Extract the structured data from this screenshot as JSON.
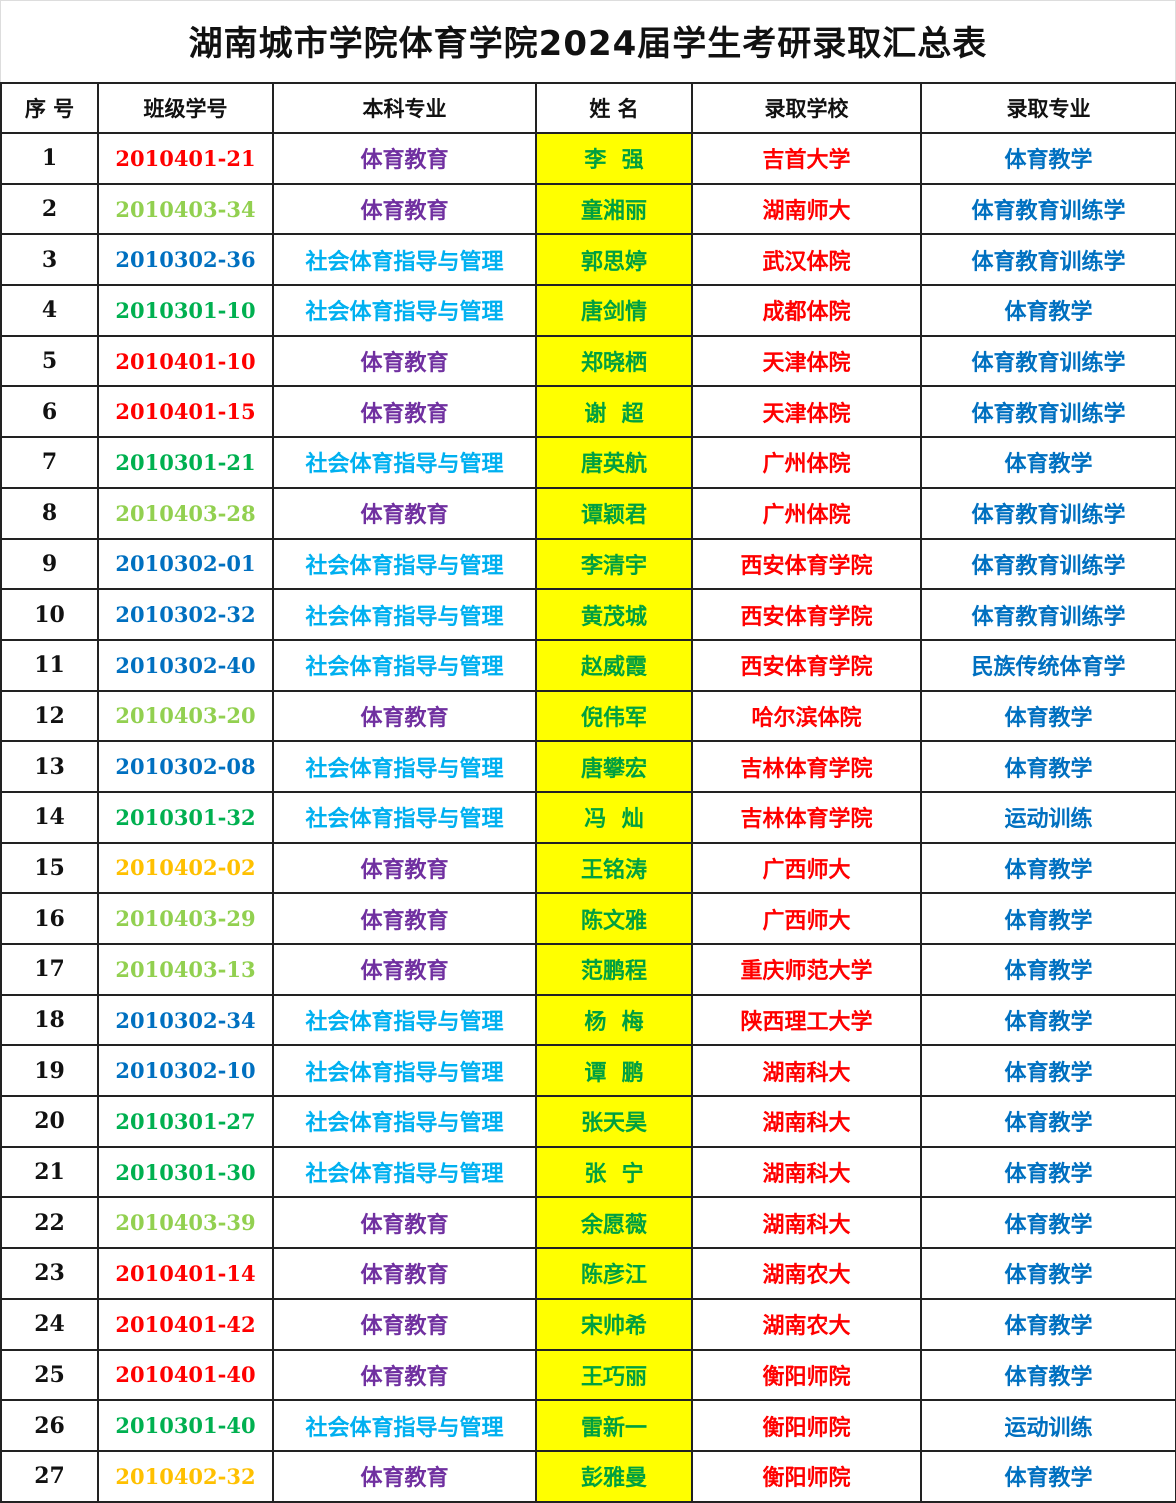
{
  "title": "湖南城市学院体育学院2024届学生考研录取汇总表",
  "headers": [
    "序  号",
    "班级学号",
    "本科专业",
    "姓  名",
    "录取学校",
    "录取专业"
  ],
  "colors": {
    "major_体育教育": "#7030a0",
    "major_社会体育指导与管理": "#00b0f0",
    "name": "#00a040",
    "school": "#ff0000",
    "admit_major": "#0070c0",
    "name_bg": "#ffff00"
  },
  "rows": [
    {
      "seq": "1",
      "sid": "2010401-21",
      "sid_color": "#ff0000",
      "major": "体育教育",
      "name": "李  强",
      "school": "吉首大学",
      "admit": "体育教学"
    },
    {
      "seq": "2",
      "sid": "2010403-34",
      "sid_color": "#92d050",
      "major": "体育教育",
      "name": "童湘丽",
      "school": "湖南师大",
      "admit": "体育教育训练学"
    },
    {
      "seq": "3",
      "sid": "2010302-36",
      "sid_color": "#0070c0",
      "major": "社会体育指导与管理",
      "name": "郭思婷",
      "school": "武汉体院",
      "admit": "体育教育训练学"
    },
    {
      "seq": "4",
      "sid": "2010301-10",
      "sid_color": "#00b050",
      "major": "社会体育指导与管理",
      "name": "唐剑情",
      "school": "成都体院",
      "admit": "体育教学"
    },
    {
      "seq": "5",
      "sid": "2010401-10",
      "sid_color": "#ff0000",
      "major": "体育教育",
      "name": "郑晓栖",
      "school": "天津体院",
      "admit": "体育教育训练学"
    },
    {
      "seq": "6",
      "sid": "2010401-15",
      "sid_color": "#ff0000",
      "major": "体育教育",
      "name": "谢  超",
      "school": "天津体院",
      "admit": "体育教育训练学"
    },
    {
      "seq": "7",
      "sid": "2010301-21",
      "sid_color": "#00b050",
      "major": "社会体育指导与管理",
      "name": "唐英航",
      "school": "广州体院",
      "admit": "体育教学"
    },
    {
      "seq": "8",
      "sid": "2010403-28",
      "sid_color": "#92d050",
      "major": "体育教育",
      "name": "谭颖君",
      "school": "广州体院",
      "admit": "体育教育训练学"
    },
    {
      "seq": "9",
      "sid": "2010302-01",
      "sid_color": "#0070c0",
      "major": "社会体育指导与管理",
      "name": "李清宇",
      "school": "西安体育学院",
      "admit": "体育教育训练学"
    },
    {
      "seq": "10",
      "sid": "2010302-32",
      "sid_color": "#0070c0",
      "major": "社会体育指导与管理",
      "name": "黄茂城",
      "school": "西安体育学院",
      "admit": "体育教育训练学"
    },
    {
      "seq": "11",
      "sid": "2010302-40",
      "sid_color": "#0070c0",
      "major": "社会体育指导与管理",
      "name": "赵威霞",
      "school": "西安体育学院",
      "admit": "民族传统体育学"
    },
    {
      "seq": "12",
      "sid": "2010403-20",
      "sid_color": "#92d050",
      "major": "体育教育",
      "name": "倪伟军",
      "school": "哈尔滨体院",
      "admit": "体育教学"
    },
    {
      "seq": "13",
      "sid": "2010302-08",
      "sid_color": "#0070c0",
      "major": "社会体育指导与管理",
      "name": "唐攀宏",
      "school": "吉林体育学院",
      "admit": "体育教学"
    },
    {
      "seq": "14",
      "sid": "2010301-32",
      "sid_color": "#00b050",
      "major": "社会体育指导与管理",
      "name": "冯  灿",
      "school": "吉林体育学院",
      "admit": "运动训练"
    },
    {
      "seq": "15",
      "sid": "2010402-02",
      "sid_color": "#ffc000",
      "major": "体育教育",
      "name": "王铭涛",
      "school": "广西师大",
      "admit": "体育教学"
    },
    {
      "seq": "16",
      "sid": "2010403-29",
      "sid_color": "#92d050",
      "major": "体育教育",
      "name": "陈文雅",
      "school": "广西师大",
      "admit": "体育教学"
    },
    {
      "seq": "17",
      "sid": "2010403-13",
      "sid_color": "#92d050",
      "major": "体育教育",
      "name": "范鹏程",
      "school": "重庆师范大学",
      "admit": "体育教学"
    },
    {
      "seq": "18",
      "sid": "2010302-34",
      "sid_color": "#0070c0",
      "major": "社会体育指导与管理",
      "name": "杨  梅",
      "school": "陕西理工大学",
      "admit": "体育教学"
    },
    {
      "seq": "19",
      "sid": "2010302-10",
      "sid_color": "#0070c0",
      "major": "社会体育指导与管理",
      "name": "谭  鹏",
      "school": "湖南科大",
      "admit": "体育教学"
    },
    {
      "seq": "20",
      "sid": "2010301-27",
      "sid_color": "#00b050",
      "major": "社会体育指导与管理",
      "name": "张天昊",
      "school": "湖南科大",
      "admit": "体育教学"
    },
    {
      "seq": "21",
      "sid": "2010301-30",
      "sid_color": "#00b050",
      "major": "社会体育指导与管理",
      "name": "张  宁",
      "school": "湖南科大",
      "admit": "体育教学"
    },
    {
      "seq": "22",
      "sid": "2010403-39",
      "sid_color": "#92d050",
      "major": "体育教育",
      "name": "余愿薇",
      "school": "湖南科大",
      "admit": "体育教学"
    },
    {
      "seq": "23",
      "sid": "2010401-14",
      "sid_color": "#ff0000",
      "major": "体育教育",
      "name": "陈彦江",
      "school": "湖南农大",
      "admit": "体育教学"
    },
    {
      "seq": "24",
      "sid": "2010401-42",
      "sid_color": "#ff0000",
      "major": "体育教育",
      "name": "宋帅希",
      "school": "湖南农大",
      "admit": "体育教学"
    },
    {
      "seq": "25",
      "sid": "2010401-40",
      "sid_color": "#ff0000",
      "major": "体育教育",
      "name": "王巧丽",
      "school": "衡阳师院",
      "admit": "体育教学"
    },
    {
      "seq": "26",
      "sid": "2010301-40",
      "sid_color": "#00b050",
      "major": "社会体育指导与管理",
      "name": "雷新一",
      "school": "衡阳师院",
      "admit": "运动训练"
    },
    {
      "seq": "27",
      "sid": "2010402-32",
      "sid_color": "#ffc000",
      "major": "体育教育",
      "name": "彭雅曼",
      "school": "衡阳师院",
      "admit": "体育教学"
    }
  ]
}
